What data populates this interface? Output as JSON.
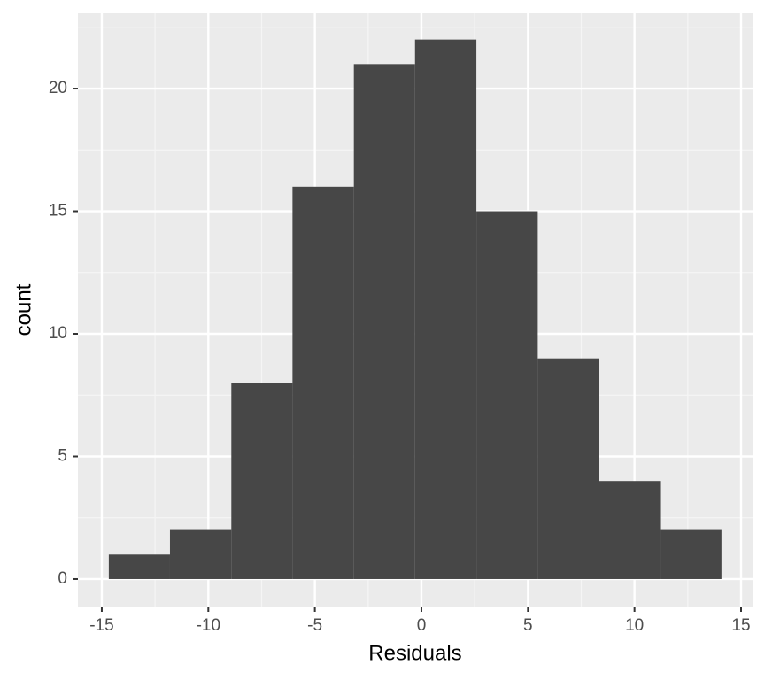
{
  "chart_data": {
    "type": "histogram",
    "x_label": "Residuals",
    "y_label": "count",
    "bins": [
      -14.67,
      -11.8,
      -8.92,
      -6.05,
      -3.17,
      -0.3,
      2.58,
      5.46,
      8.33,
      11.2,
      14.08
    ],
    "values": [
      1,
      2,
      8,
      16,
      21,
      22,
      15,
      9,
      4,
      2
    ],
    "color": "#474747",
    "xlim": [
      -16.12,
      15.54
    ],
    "xticks": [
      -15,
      -10,
      -5,
      0,
      5,
      10,
      15
    ],
    "ylim": [
      -1.12,
      23.07
    ],
    "yticks": [
      0,
      5,
      10,
      15,
      20
    ],
    "grid": true
  }
}
